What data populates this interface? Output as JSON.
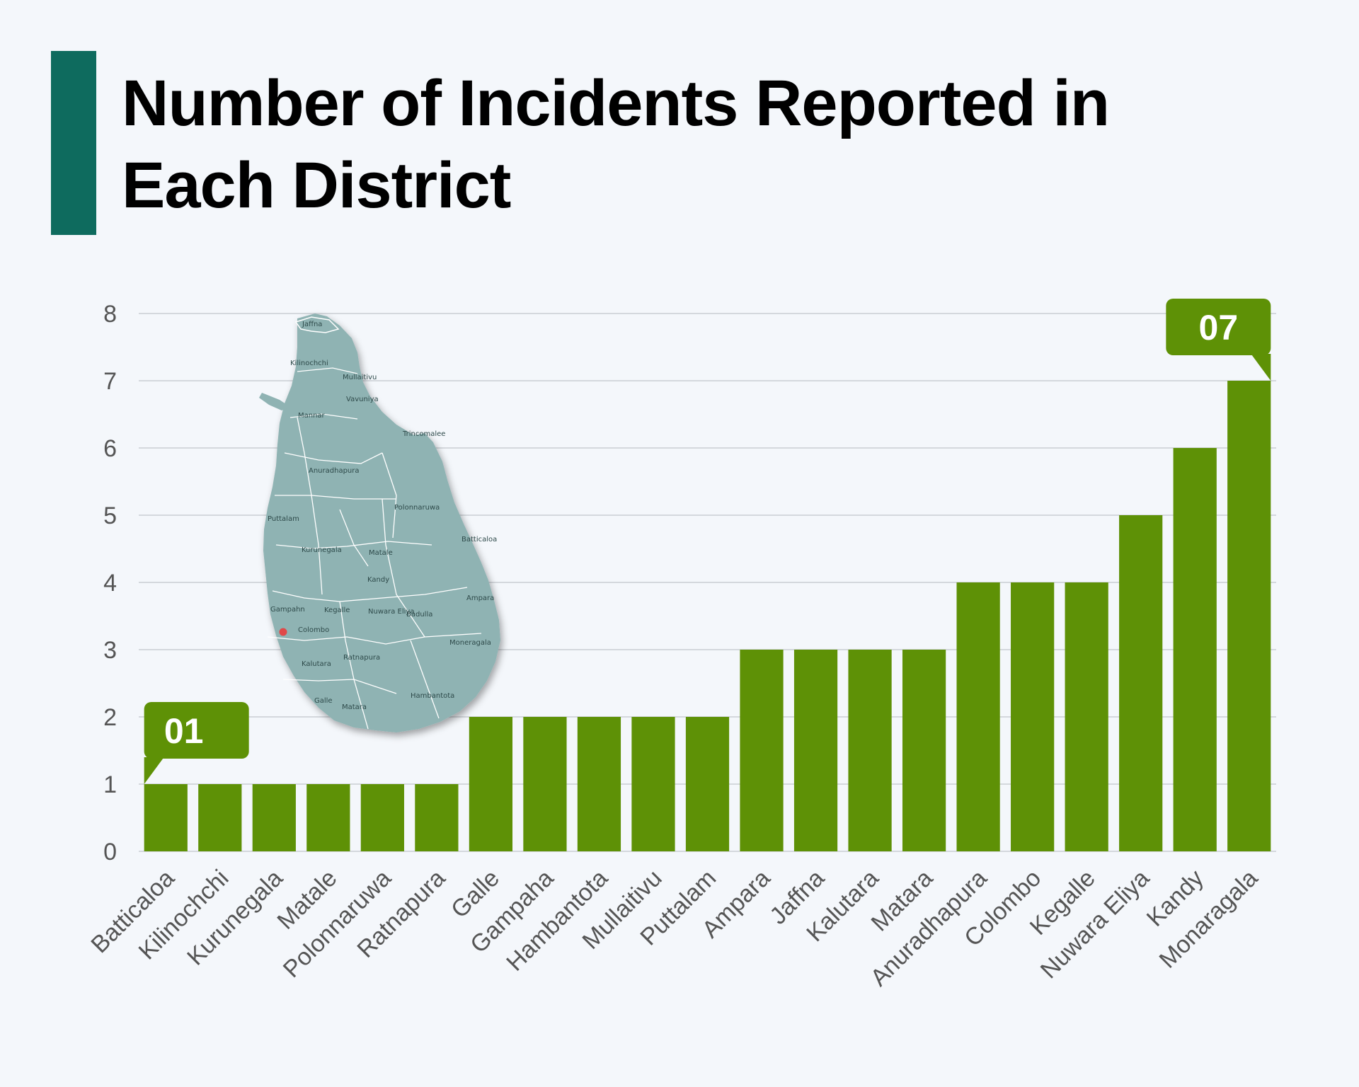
{
  "title_lines": [
    "Number of Incidents Reported in",
    "Each District"
  ],
  "colors": {
    "accent": "#0e6b5e",
    "bar": "#5e9106",
    "grid": "#d4d8dd",
    "map_fill": "#8fb3b3",
    "map_border": "#ffffff",
    "marker": "#e04848"
  },
  "callouts": [
    {
      "category": "Batticaloa",
      "label": "01",
      "side": "left"
    },
    {
      "category": "Monaragala",
      "label": "07",
      "side": "right"
    }
  ],
  "map": {
    "icon": "sri-lanka-district-map-icon",
    "labels": [
      "Jaffna",
      "Kilinochchi",
      "Mullaitivu",
      "Vavuniya",
      "Mannar",
      "Trincomalee",
      "Anuradhapura",
      "Polonnaruwa",
      "Puttalam",
      "Batticaloa",
      "Kurunegala",
      "Matale",
      "Kandy",
      "Ampara",
      "Gampahn",
      "Kegalle",
      "Nuwara Eliya",
      "Badulla",
      "Colombo",
      "Moneragala",
      "Kalutara",
      "Ratnapura",
      "Galle",
      "Matara",
      "Hambantota"
    ]
  },
  "chart_data": {
    "type": "bar",
    "title": "Number of Incidents Reported in Each District",
    "xlabel": "",
    "ylabel": "",
    "ylim": [
      0,
      8
    ],
    "yticks": [
      0,
      1,
      2,
      3,
      4,
      5,
      6,
      7,
      8
    ],
    "grid": true,
    "legend": "none",
    "categories": [
      "Batticaloa",
      "Kilinochchi",
      "Kurunegala",
      "Matale",
      "Polonnaruwa",
      "Ratnapura",
      "Galle",
      "Gampaha",
      "Hambantota",
      "Mullaitivu",
      "Puttalam",
      "Ampara",
      "Jaffna",
      "Kalutara",
      "Matara",
      "Anuradhapura",
      "Colombo",
      "Kegalle",
      "Nuwara Eliya",
      "Kandy",
      "Monaragala"
    ],
    "values": [
      1,
      1,
      1,
      1,
      1,
      1,
      2,
      2,
      2,
      2,
      2,
      3,
      3,
      3,
      3,
      4,
      4,
      4,
      5,
      6,
      7
    ]
  }
}
